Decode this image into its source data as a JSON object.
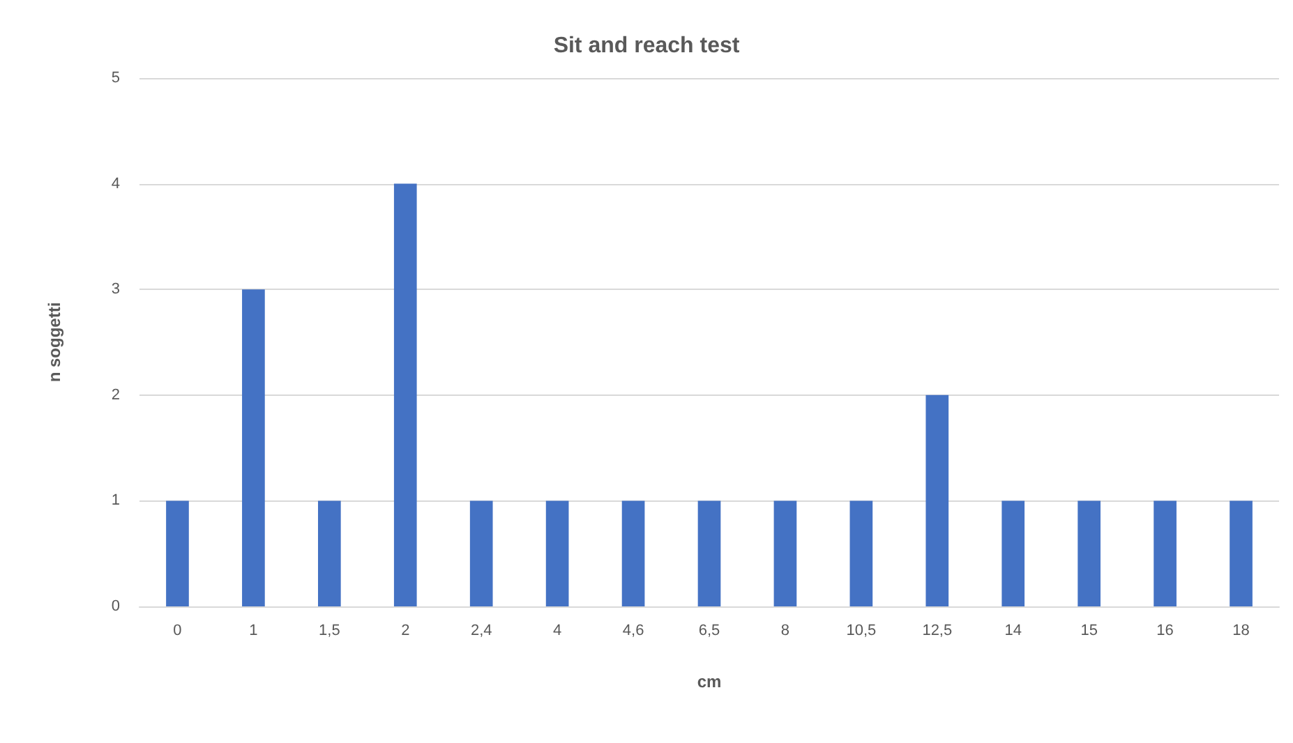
{
  "chart_data": {
    "type": "bar",
    "title": "Sit and reach test",
    "xlabel": "cm",
    "ylabel": "n soggetti",
    "categories": [
      "0",
      "1",
      "1,5",
      "2",
      "2,4",
      "4",
      "4,6",
      "6,5",
      "8",
      "10,5",
      "12,5",
      "14",
      "15",
      "16",
      "18"
    ],
    "values": [
      1,
      3,
      1,
      4,
      1,
      1,
      1,
      1,
      1,
      1,
      2,
      1,
      1,
      1,
      1
    ],
    "color": "#4472c4",
    "ylim": [
      0,
      5
    ],
    "yticks": [
      0,
      1,
      2,
      3,
      4,
      5
    ],
    "grid": "y"
  }
}
